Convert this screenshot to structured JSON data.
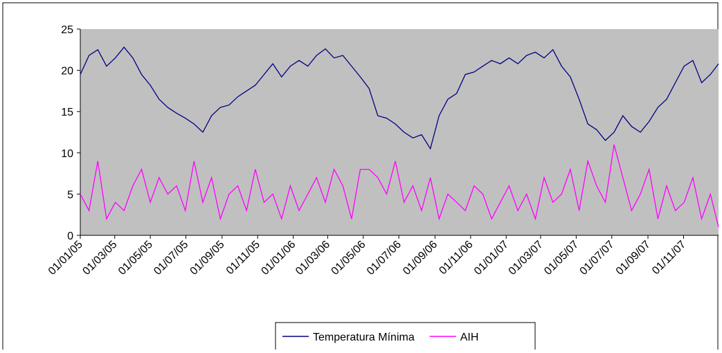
{
  "chart_data": {
    "type": "line",
    "x": [
      "01/01/05",
      "16/01/05",
      "31/01/05",
      "15/02/05",
      "02/03/05",
      "17/03/05",
      "01/04/05",
      "16/04/05",
      "01/05/05",
      "16/05/05",
      "31/05/05",
      "15/06/05",
      "30/06/05",
      "15/07/05",
      "30/07/05",
      "14/08/05",
      "29/08/05",
      "13/09/05",
      "28/09/05",
      "13/10/05",
      "28/10/05",
      "12/11/05",
      "27/11/05",
      "12/12/05",
      "27/12/05",
      "11/01/06",
      "26/01/06",
      "10/02/06",
      "25/02/06",
      "12/03/06",
      "27/03/06",
      "11/04/06",
      "26/04/06",
      "11/05/06",
      "26/05/06",
      "10/06/06",
      "25/06/06",
      "10/07/06",
      "25/07/06",
      "09/08/06",
      "24/08/06",
      "08/09/06",
      "23/09/06",
      "08/10/06",
      "23/10/06",
      "07/11/06",
      "22/11/06",
      "07/12/06",
      "22/12/06",
      "06/01/07",
      "21/01/07",
      "05/02/07",
      "20/02/07",
      "07/03/07",
      "22/03/07",
      "06/04/07",
      "21/04/07",
      "06/05/07",
      "21/05/07",
      "05/06/07",
      "20/06/07",
      "05/07/07",
      "20/07/07",
      "04/08/07",
      "19/08/07",
      "03/09/07",
      "18/09/07",
      "03/10/07",
      "18/10/07",
      "02/11/07",
      "17/11/07",
      "02/12/07",
      "17/12/07",
      "31/12/07"
    ],
    "series": [
      {
        "name": "Temperatura Mínima",
        "color": "#000080",
        "values": [
          19.5,
          21.8,
          22.5,
          20.5,
          21.5,
          22.8,
          21.5,
          19.5,
          18.2,
          16.5,
          15.5,
          14.8,
          14.2,
          13.5,
          12.5,
          14.5,
          15.5,
          15.8,
          16.8,
          17.5,
          18.2,
          19.5,
          20.8,
          19.2,
          20.5,
          21.2,
          20.5,
          21.8,
          22.6,
          21.5,
          21.8,
          20.5,
          19.2,
          17.8,
          14.5,
          14.2,
          13.5,
          12.5,
          11.8,
          12.2,
          10.5,
          14.5,
          16.5,
          17.2,
          19.5,
          19.8,
          20.5,
          21.2,
          20.8,
          21.5,
          20.8,
          21.8,
          22.2,
          21.5,
          22.5,
          20.5,
          19.2,
          16.5,
          13.5,
          12.8,
          11.5,
          12.5,
          14.5,
          13.2,
          12.5,
          13.8,
          15.5,
          16.5,
          18.5,
          20.5,
          21.2,
          18.5,
          19.5,
          20.8
        ]
      },
      {
        "name": "AIH",
        "color": "#ff00ff",
        "values": [
          5,
          3,
          9,
          2,
          4,
          3,
          6,
          8,
          4,
          7,
          5,
          6,
          3,
          9,
          4,
          7,
          2,
          5,
          6,
          3,
          8,
          4,
          5,
          2,
          6,
          3,
          5,
          7,
          4,
          8,
          6,
          2,
          8,
          8,
          7,
          5,
          9,
          4,
          6,
          3,
          7,
          2,
          5,
          4,
          3,
          6,
          5,
          2,
          4,
          6,
          3,
          5,
          2,
          7,
          4,
          5,
          8,
          3,
          9,
          6,
          4,
          11,
          7,
          3,
          5,
          8,
          2,
          6,
          3,
          4,
          7,
          2,
          5,
          1
        ]
      }
    ],
    "xlim": [
      "01/01/05",
      "31/12/07"
    ],
    "xticks": [
      "01/01/05",
      "01/03/05",
      "01/05/05",
      "01/07/05",
      "01/09/05",
      "01/11/05",
      "01/01/06",
      "01/03/06",
      "01/05/06",
      "01/07/06",
      "01/09/06",
      "01/11/06",
      "01/01/07",
      "01/03/07",
      "01/05/07",
      "01/07/07",
      "01/09/07",
      "01/11/07"
    ],
    "ylim": [
      0,
      25
    ],
    "yticks": [
      0,
      5,
      10,
      15,
      20,
      25
    ],
    "grid": false,
    "legend": "bottom"
  }
}
